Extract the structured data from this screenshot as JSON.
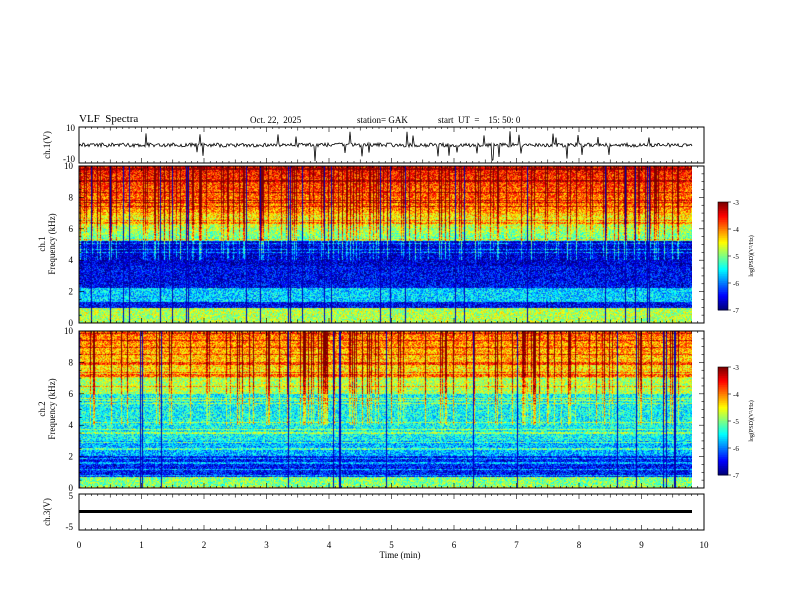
{
  "header": {
    "title": "VLF  Spectra",
    "date": "Oct. 22,  2025",
    "station": "station= GAK",
    "start": "start  UT  =    15: 50: 0"
  },
  "chart_data": [
    {
      "type": "line",
      "name": "ch1-waveform",
      "ylabel": "ch.1(V)",
      "ylim": [
        -10,
        10
      ],
      "yticks": [
        "10",
        "-10"
      ],
      "xlim": [
        0,
        10
      ]
    },
    {
      "type": "heatmap",
      "name": "ch1-spectrogram",
      "ylabel": "ch.1\nFrequency  (kHz)",
      "ylabel_line1": "ch.1",
      "ylabel_line2": "Frequency  (kHz)",
      "ylim": [
        0,
        10
      ],
      "yticks": [
        0,
        2,
        4,
        6,
        8,
        10
      ],
      "xlim": [
        0,
        9.8
      ],
      "colorbar": {
        "label": "log(PSD)(V²/Hz)",
        "range": [
          -7,
          -3
        ],
        "ticks": [
          "-3",
          "-4",
          "-5",
          "-6",
          "-7"
        ]
      }
    },
    {
      "type": "heatmap",
      "name": "ch2-spectrogram",
      "ylabel_line1": "ch.2",
      "ylabel_line2": "Frequency  (kHz)",
      "ylim": [
        0,
        10
      ],
      "yticks": [
        0,
        2,
        4,
        6,
        8,
        10
      ],
      "xlim": [
        0,
        9.8
      ],
      "colorbar": {
        "label": "log(PSD)(V²/Hz)",
        "range": [
          -7,
          -3
        ],
        "ticks": [
          "-3",
          "-4",
          "-5",
          "-6",
          "-7"
        ]
      }
    },
    {
      "type": "line",
      "name": "ch3-waveform",
      "ylabel": "ch.3(V)",
      "ylim": [
        -5,
        5
      ],
      "yticks": [
        "5",
        "-5"
      ],
      "value": 0,
      "xlim": [
        0,
        10
      ]
    }
  ],
  "xaxis": {
    "label": "Time  (min)",
    "ticks": [
      "0",
      "1",
      "2",
      "3",
      "4",
      "5",
      "6",
      "7",
      "8",
      "9",
      "10"
    ]
  },
  "colors": {
    "scale": [
      "#00007f",
      "#0000ff",
      "#0080ff",
      "#00ffff",
      "#80ff80",
      "#ffff00",
      "#ff8000",
      "#ff0000",
      "#7f0000"
    ]
  }
}
